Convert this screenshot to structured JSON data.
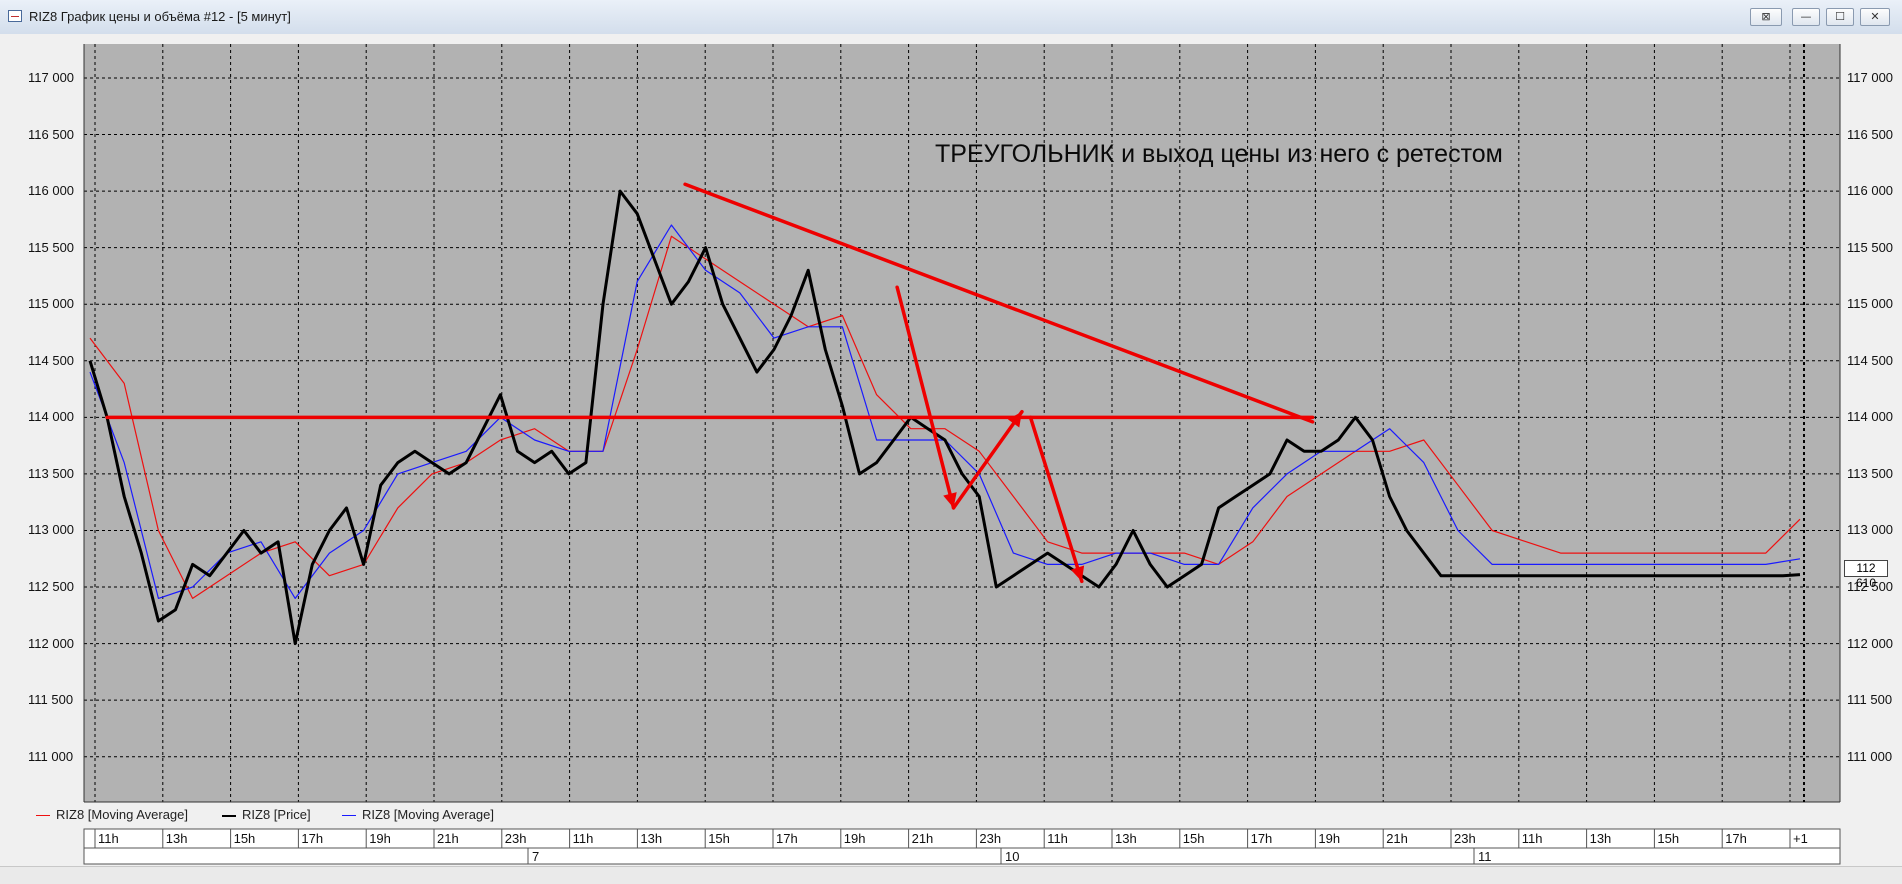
{
  "window": {
    "title": "RIZ8 График цены и объёма #12 - [5 минут]",
    "buttons": [
      "⊠",
      "—",
      "☐",
      "✕"
    ]
  },
  "colors": {
    "plot_bg": "#b2b2b2",
    "price": "#000000",
    "ma_fast": "#1a1aff",
    "ma_slow": "#ee1010",
    "annotation_lines": "#ee0000"
  },
  "annotation": {
    "text": "ТРЕУГОЛЬНИК и выход цены из него с ретестом"
  },
  "legend": [
    {
      "name": "RIZ8 [Moving Average]",
      "color": "#ee1010"
    },
    {
      "name": "RIZ8 [Price]",
      "color": "#000000"
    },
    {
      "name": "RIZ8 [Moving Average]",
      "color": "#1a1aff"
    }
  ],
  "chart_data": {
    "type": "line",
    "ylim": [
      110600,
      117300
    ],
    "y_ticks": [
      "117 000",
      "116 500",
      "116 000",
      "115 500",
      "115 000",
      "114 500",
      "114 000",
      "113 500",
      "113 000",
      "112 500",
      "112 000",
      "111 500",
      "111 000"
    ],
    "y_tick_values": [
      117000,
      116500,
      116000,
      115500,
      115000,
      114500,
      114000,
      113500,
      113000,
      112500,
      112000,
      111500,
      111000
    ],
    "x_ticks": [
      "11h",
      "13h",
      "15h",
      "17h",
      "19h",
      "21h",
      "23h",
      "11h",
      "13h",
      "15h",
      "17h",
      "19h",
      "21h",
      "23h",
      "11h",
      "13h",
      "15h",
      "17h",
      "19h",
      "21h",
      "23h",
      "11h",
      "13h",
      "15h",
      "17h",
      "+1"
    ],
    "day_labels": [
      "7",
      "10",
      "11"
    ],
    "last_price": "112 610",
    "x_range": [
      0,
      100
    ],
    "series": [
      {
        "name": "RIZ8 [Price]",
        "x": [
          0,
          1,
          2,
          3,
          4,
          5,
          6,
          7,
          8,
          9,
          10,
          11,
          12,
          13,
          14,
          15,
          16,
          17,
          18,
          19,
          20,
          21,
          22,
          23,
          24,
          25,
          26,
          27,
          28,
          29,
          30,
          31,
          32,
          33,
          34,
          35,
          36,
          37,
          38,
          39,
          40,
          41,
          42,
          43,
          44,
          45,
          46,
          47,
          48,
          49,
          50,
          51,
          52,
          53,
          54,
          55,
          56,
          57,
          58,
          59,
          60,
          61,
          62,
          63,
          64,
          65,
          66,
          67,
          68,
          69,
          70,
          71,
          72,
          73,
          74,
          75,
          76,
          77,
          78,
          79,
          80,
          81,
          82,
          83,
          84,
          85,
          86,
          87,
          88,
          89,
          90,
          91,
          92,
          93,
          94,
          95,
          96,
          97,
          98,
          99,
          100
        ],
        "values": [
          114500,
          114000,
          113300,
          112800,
          112200,
          112300,
          112700,
          112600,
          112800,
          113000,
          112800,
          112900,
          112000,
          112700,
          113000,
          113200,
          112700,
          113400,
          113600,
          113700,
          113600,
          113500,
          113600,
          113900,
          114200,
          113700,
          113600,
          113700,
          113500,
          113600,
          115000,
          116000,
          115800,
          115400,
          115000,
          115200,
          115500,
          115000,
          114700,
          114400,
          114600,
          114900,
          115300,
          114600,
          114100,
          113500,
          113600,
          113800,
          114000,
          113900,
          113800,
          113500,
          113300,
          112500,
          112600,
          112700,
          112800,
          112700,
          112600,
          112500,
          112700,
          113000,
          112700,
          112500,
          112600,
          112700,
          113200,
          113300,
          113400,
          113500,
          113800,
          113700,
          113700,
          113800,
          114000,
          113800,
          113300,
          113000,
          112800,
          112600,
          112600,
          112600,
          112600,
          112600,
          112600,
          112600,
          112600,
          112600,
          112600,
          112600,
          112600,
          112600,
          112600,
          112600,
          112600,
          112600,
          112600,
          112600,
          112600,
          112600,
          112610
        ],
        "color": "#000000"
      },
      {
        "name": "RIZ8 [Moving Average]",
        "x": [
          0,
          2,
          4,
          6,
          8,
          10,
          12,
          14,
          16,
          18,
          20,
          22,
          24,
          26,
          28,
          30,
          32,
          34,
          36,
          38,
          40,
          42,
          44,
          46,
          48,
          50,
          52,
          54,
          56,
          58,
          60,
          62,
          64,
          66,
          68,
          70,
          72,
          74,
          76,
          78,
          80,
          82,
          84,
          86,
          88,
          90,
          92,
          94,
          96,
          98,
          100
        ],
        "values": [
          114400,
          113600,
          112400,
          112500,
          112800,
          112900,
          112400,
          112800,
          113000,
          113500,
          113600,
          113700,
          114000,
          113800,
          113700,
          113700,
          115200,
          115700,
          115300,
          115100,
          114700,
          114800,
          114800,
          113800,
          113800,
          113800,
          113500,
          112800,
          112700,
          112700,
          112800,
          112800,
          112700,
          112700,
          113200,
          113500,
          113700,
          113700,
          113900,
          113600,
          113000,
          112700,
          112700,
          112700,
          112700,
          112700,
          112700,
          112700,
          112700,
          112700,
          112750
        ],
        "color": "#1a1aff"
      },
      {
        "name": "RIZ8 [Moving Average]",
        "x": [
          0,
          2,
          4,
          6,
          8,
          10,
          12,
          14,
          16,
          18,
          20,
          22,
          24,
          26,
          28,
          30,
          32,
          34,
          36,
          38,
          40,
          42,
          44,
          46,
          48,
          50,
          52,
          54,
          56,
          58,
          60,
          62,
          64,
          66,
          68,
          70,
          72,
          74,
          76,
          78,
          80,
          82,
          84,
          86,
          88,
          90,
          92,
          94,
          96,
          98,
          100
        ],
        "values": [
          114700,
          114300,
          113000,
          112400,
          112600,
          112800,
          112900,
          112600,
          112700,
          113200,
          113500,
          113600,
          113800,
          113900,
          113700,
          113700,
          114600,
          115600,
          115400,
          115200,
          115000,
          114800,
          114900,
          114200,
          113900,
          113900,
          113700,
          113300,
          112900,
          112800,
          112800,
          112800,
          112800,
          112700,
          112900,
          113300,
          113500,
          113700,
          113700,
          113800,
          113400,
          113000,
          112900,
          112800,
          112800,
          112800,
          112800,
          112800,
          112800,
          112800,
          113100
        ],
        "color": "#ee1010"
      }
    ]
  }
}
